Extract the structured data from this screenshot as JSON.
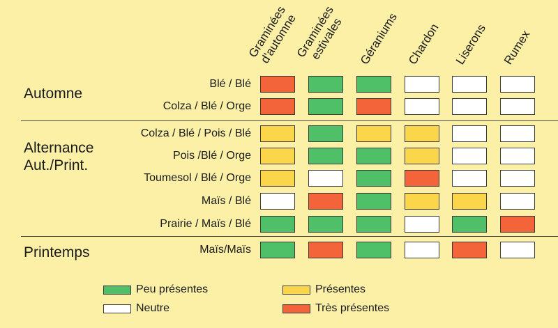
{
  "colors": {
    "peu": "#4fbf68",
    "presentes": "#fbd54a",
    "neutre": "#ffffff",
    "tres": "#f4643a"
  },
  "chart_data": {
    "type": "heatmap",
    "columns": [
      [
        "Graminées",
        "d'automne"
      ],
      [
        "Graminées",
        "estivales"
      ],
      [
        "Géraniums"
      ],
      [
        "Chardon"
      ],
      [
        "Liserons"
      ],
      [
        "Rumex"
      ]
    ],
    "groups": [
      {
        "label": [
          "Automne"
        ],
        "rows": [
          0,
          1
        ]
      },
      {
        "label": [
          "Alternance",
          "Aut./Print."
        ],
        "rows": [
          2,
          3,
          4,
          5,
          6
        ]
      },
      {
        "label": [
          "Printemps"
        ],
        "rows": [
          7
        ]
      }
    ],
    "rows": [
      {
        "label": "Blé / Blé",
        "values": [
          "tres",
          "peu",
          "peu",
          "neutre",
          "neutre",
          "neutre"
        ]
      },
      {
        "label": "Colza / Blé / Orge",
        "values": [
          "tres",
          "peu",
          "tres",
          "neutre",
          "neutre",
          "neutre"
        ]
      },
      {
        "label": "Colza / Blé / Pois / Blé",
        "values": [
          "presentes",
          "peu",
          "presentes",
          "presentes",
          "neutre",
          "neutre"
        ]
      },
      {
        "label": "Pois  /Blé / Orge",
        "values": [
          "presentes",
          "peu",
          "peu",
          "presentes",
          "neutre",
          "neutre"
        ]
      },
      {
        "label": "Toumesol / Blé / Orge",
        "values": [
          "presentes",
          "neutre",
          "peu",
          "tres",
          "neutre",
          "neutre"
        ]
      },
      {
        "label": "Maïs / Blé",
        "values": [
          "neutre",
          "tres",
          "peu",
          "presentes",
          "presentes",
          "neutre"
        ]
      },
      {
        "label": "Prairie / Maïs / Blé",
        "values": [
          "peu",
          "peu",
          "peu",
          "neutre",
          "peu",
          "tres"
        ]
      },
      {
        "label": "Maïs/Maïs",
        "values": [
          "peu",
          "tres",
          "peu",
          "neutre",
          "tres",
          "neutre"
        ]
      }
    ],
    "legend": [
      {
        "key": "peu",
        "label": "Peu présentes"
      },
      {
        "key": "presentes",
        "label": "Présentes"
      },
      {
        "key": "neutre",
        "label": "Neutre"
      },
      {
        "key": "tres",
        "label": "Très présentes"
      }
    ]
  }
}
